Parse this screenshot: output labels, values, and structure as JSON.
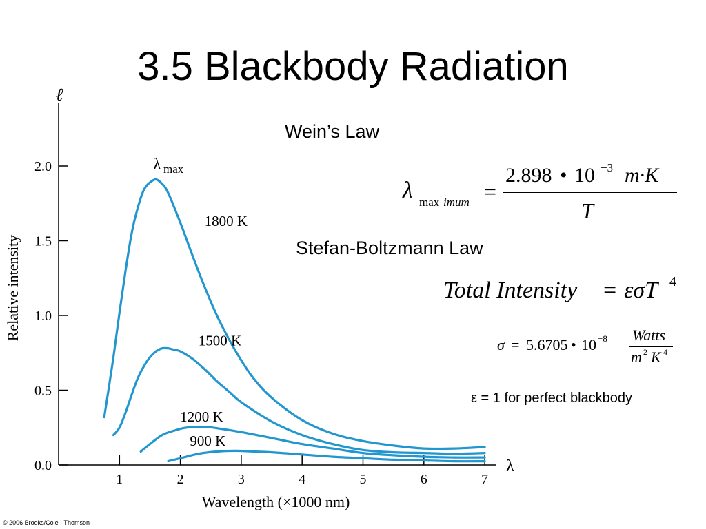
{
  "title": "3.5 Blackbody Radiation",
  "wien": {
    "heading": "Wein’s Law",
    "lhs_symbol": "λ",
    "lhs_subscript_a": "max",
    "lhs_subscript_b": "imum",
    "equals": "=",
    "numerator_coeff": "2.898",
    "numerator_dot": "•",
    "numerator_base": "10",
    "numerator_exp": "−3",
    "numerator_units": "m·K",
    "denominator": "T"
  },
  "stefan": {
    "heading": "Stefan-Boltzmann Law",
    "equation_lhs": "Total Intensity",
    "equation_equals": "=",
    "equation_rhs": "εσT",
    "equation_exp": "4",
    "sigma_lhs": "σ",
    "sigma_equals": "=",
    "sigma_value": "5.6705",
    "sigma_dot": "•",
    "sigma_base": "10",
    "sigma_exp": "−8",
    "units_numerator": "Watts",
    "units_den_m": "m",
    "units_den_m_exp": "2",
    "units_den_K": "K",
    "units_den_K_exp": "4"
  },
  "emissivity_note": "ε = 1 for perfect blackbody",
  "copyright": "© 2006 Brooks/Cole - Thomson",
  "colors": {
    "curve": "#2196cf",
    "axis": "#000000"
  },
  "chart_data": {
    "type": "line",
    "xlabel": "Wavelength (×1000 nm)",
    "ylabel": "Relative intensity",
    "x_axis_symbol": "λ",
    "y_axis_symbol": "ℓ",
    "peak_label": "λ",
    "peak_label_sub": "max",
    "xlim": [
      0,
      7
    ],
    "ylim": [
      0,
      2.0
    ],
    "x_ticks": [
      "1",
      "2",
      "3",
      "4",
      "5",
      "6",
      "7"
    ],
    "y_ticks": [
      "0.0",
      "0.5",
      "1.0",
      "1.5",
      "2.0"
    ],
    "grid": false,
    "series": [
      {
        "name": "1800 K",
        "x": [
          0.75,
          0.9,
          1.0,
          1.1,
          1.2,
          1.3,
          1.4,
          1.5,
          1.6,
          1.7,
          1.8,
          2.0,
          2.2,
          2.4,
          2.6,
          2.8,
          3.0,
          3.2,
          3.5,
          4.0,
          4.5,
          5.0,
          5.5,
          6.0,
          6.5,
          7.0
        ],
        "y": [
          0.32,
          0.72,
          1.02,
          1.3,
          1.55,
          1.72,
          1.84,
          1.89,
          1.91,
          1.88,
          1.82,
          1.62,
          1.4,
          1.19,
          1.0,
          0.84,
          0.7,
          0.58,
          0.45,
          0.3,
          0.21,
          0.16,
          0.13,
          0.11,
          0.11,
          0.12
        ]
      },
      {
        "name": "1500 K",
        "x": [
          0.9,
          1.0,
          1.1,
          1.2,
          1.3,
          1.4,
          1.5,
          1.6,
          1.7,
          1.8,
          1.9,
          2.0,
          2.2,
          2.4,
          2.6,
          2.8,
          3.0,
          3.5,
          4.0,
          4.5,
          5.0,
          5.5,
          6.0,
          6.5,
          7.0
        ],
        "y": [
          0.2,
          0.25,
          0.35,
          0.47,
          0.58,
          0.66,
          0.72,
          0.76,
          0.78,
          0.78,
          0.77,
          0.76,
          0.71,
          0.64,
          0.56,
          0.49,
          0.42,
          0.29,
          0.2,
          0.14,
          0.1,
          0.085,
          0.08,
          0.075,
          0.08
        ]
      },
      {
        "name": "1200 K",
        "x": [
          1.35,
          1.5,
          1.7,
          1.9,
          2.1,
          2.4,
          2.7,
          3.0,
          3.5,
          4.0,
          4.5,
          5.0,
          5.5,
          6.0,
          6.5,
          7.0
        ],
        "y": [
          0.09,
          0.14,
          0.2,
          0.23,
          0.25,
          0.255,
          0.24,
          0.22,
          0.18,
          0.14,
          0.11,
          0.08,
          0.065,
          0.055,
          0.05,
          0.05
        ]
      },
      {
        "name": "900 K",
        "x": [
          1.8,
          2.0,
          2.3,
          2.6,
          2.9,
          3.2,
          3.5,
          4.0,
          4.5,
          5.0,
          5.5,
          6.0,
          6.5,
          7.0
        ],
        "y": [
          0.025,
          0.045,
          0.075,
          0.09,
          0.095,
          0.09,
          0.085,
          0.07,
          0.055,
          0.045,
          0.035,
          0.03,
          0.025,
          0.025
        ]
      }
    ]
  }
}
